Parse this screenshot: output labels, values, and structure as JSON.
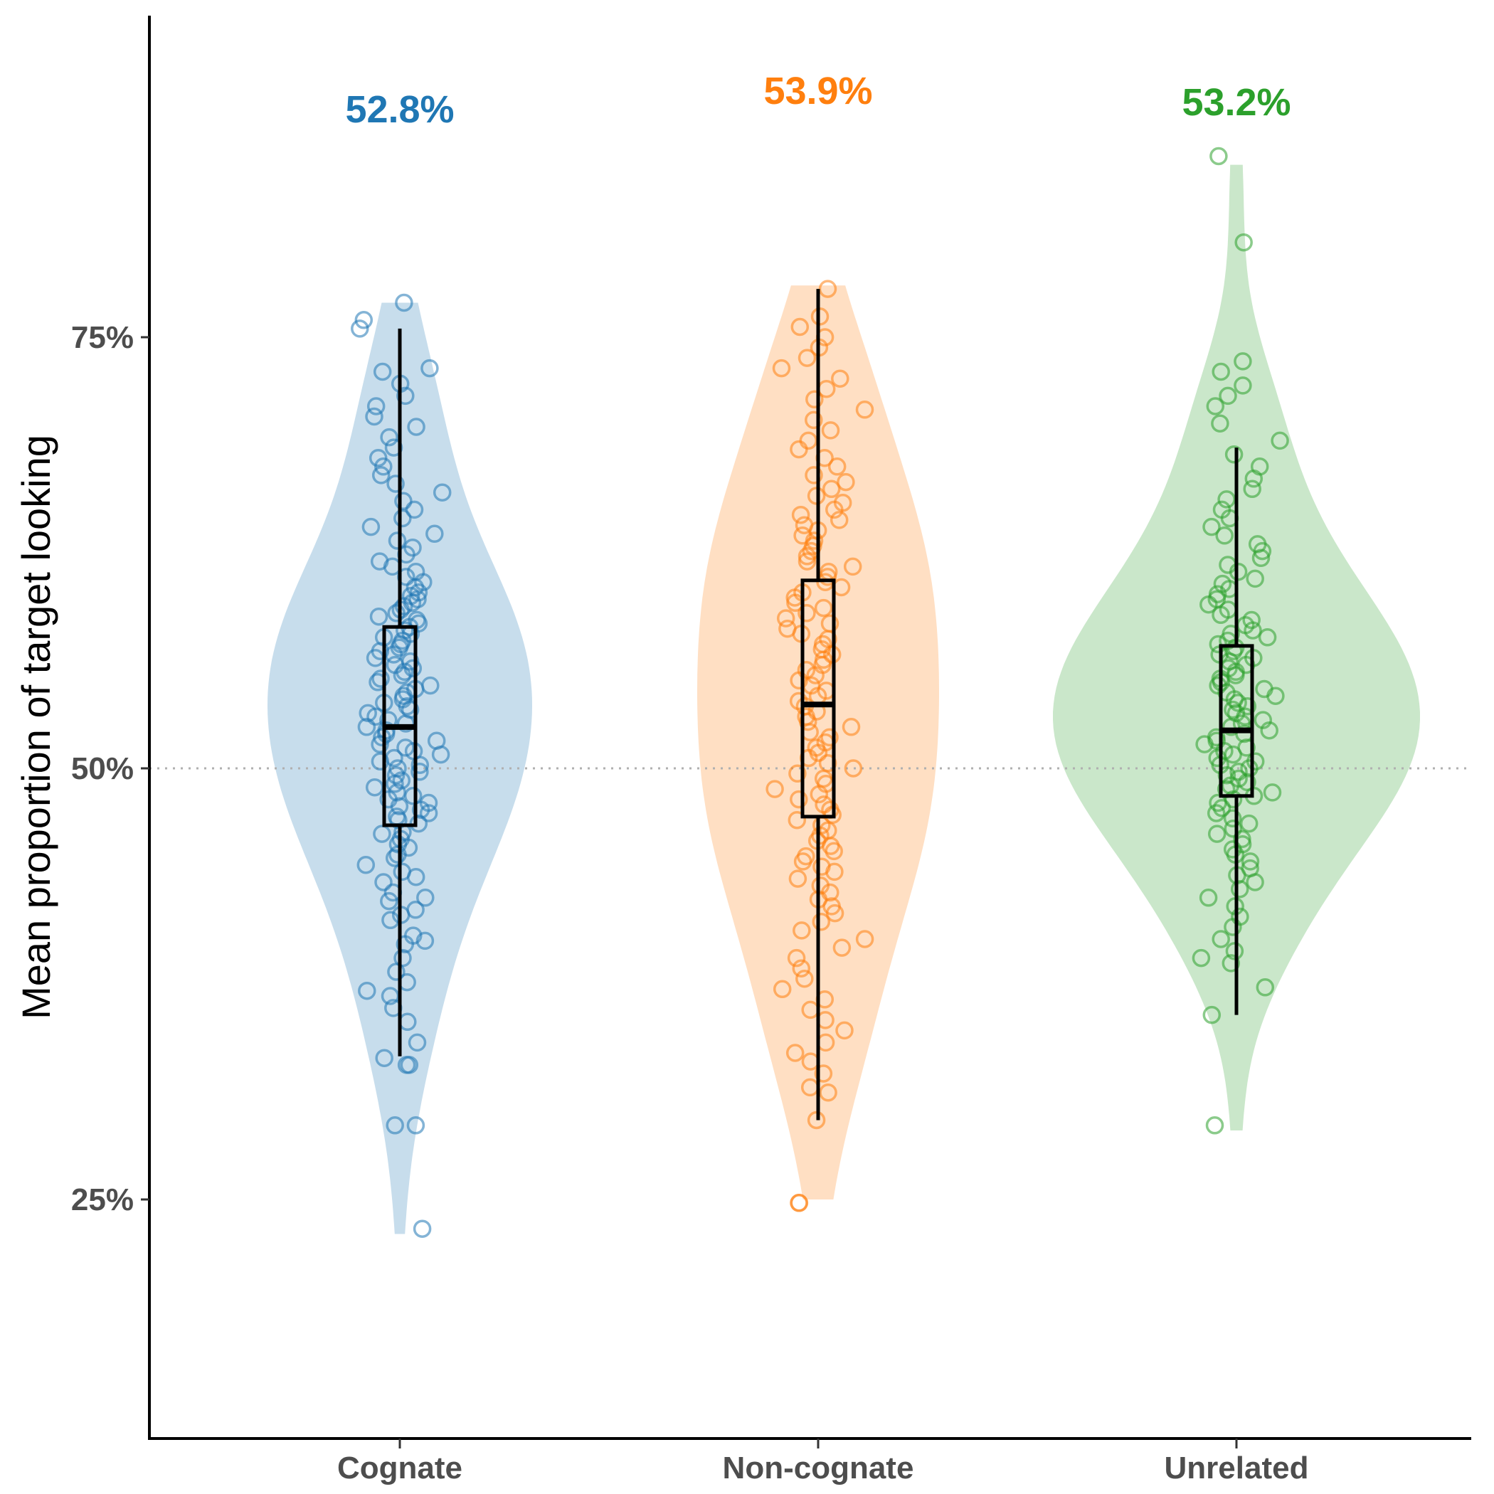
{
  "chart_data": {
    "type": "violin",
    "title": "",
    "xlabel": "",
    "ylabel": "Mean proportion of target looking",
    "y_unit": "percent",
    "ylim": [
      10,
      88
    ],
    "yticks": [
      25,
      50,
      75
    ],
    "ytick_labels": [
      "25%",
      "50%",
      "75%"
    ],
    "reference_line": 50,
    "grid": false,
    "legend": "none",
    "categories": [
      "Cognate",
      "Non-cognate",
      "Unrelated"
    ],
    "series": [
      {
        "name": "Cognate",
        "color": "#1f77b4",
        "mean_label": "52.8%",
        "median": 52.4,
        "q1": 46.7,
        "q3": 58.2,
        "whisker_low": 33.3,
        "whisker_high": 75.5,
        "violin_range": [
          23,
          77
        ],
        "points": [
          23.3,
          29.3,
          29.3,
          32.8,
          32.8,
          33.2,
          34.1,
          35.3,
          36.1,
          36.8,
          37.1,
          37.6,
          38.2,
          39.0,
          39.8,
          40.0,
          40.3,
          41.2,
          41.5,
          41.8,
          42.3,
          42.5,
          42.8,
          43.4,
          43.7,
          44.0,
          44.4,
          44.8,
          45.0,
          45.4,
          45.6,
          45.9,
          46.2,
          46.3,
          46.8,
          47.0,
          47.2,
          47.4,
          47.6,
          47.8,
          48.0,
          48.2,
          48.4,
          48.6,
          48.9,
          49.1,
          49.3,
          49.6,
          49.8,
          50.0,
          50.2,
          50.4,
          50.6,
          50.8,
          51.0,
          51.2,
          51.4,
          51.6,
          51.8,
          52.0,
          52.2,
          52.4,
          52.6,
          52.8,
          53.0,
          53.2,
          53.4,
          53.6,
          53.8,
          54.0,
          54.2,
          54.4,
          54.6,
          54.8,
          55.0,
          55.2,
          55.4,
          55.6,
          55.8,
          56.0,
          56.2,
          56.4,
          56.6,
          56.8,
          57.0,
          57.2,
          57.4,
          57.6,
          57.8,
          58.0,
          58.2,
          58.4,
          58.6,
          58.8,
          59.0,
          59.2,
          59.4,
          59.6,
          59.8,
          60.0,
          60.2,
          60.5,
          60.8,
          61.1,
          61.4,
          61.7,
          62.0,
          62.4,
          62.8,
          63.2,
          63.6,
          64.0,
          64.5,
          65.0,
          65.5,
          66.0,
          66.5,
          67.0,
          67.5,
          68.0,
          68.6,
          69.2,
          69.8,
          70.4,
          71.0,
          71.6,
          72.3,
          73.0,
          73.2,
          75.5,
          76.0,
          77.0
        ]
      },
      {
        "name": "Non-cognate",
        "color": "#ff7f0e",
        "mean_label": "53.9%",
        "median": 53.7,
        "q1": 47.2,
        "q3": 60.9,
        "whisker_low": 29.6,
        "whisker_high": 77.8,
        "violin_range": [
          25,
          78
        ],
        "points": [
          24.8,
          24.8,
          29.6,
          31.2,
          31.5,
          32.3,
          33.0,
          33.5,
          34.1,
          34.8,
          35.4,
          36.0,
          36.6,
          37.2,
          37.8,
          38.4,
          39.0,
          39.6,
          40.1,
          40.6,
          41.1,
          41.6,
          42.0,
          42.4,
          42.8,
          43.2,
          43.6,
          44.0,
          44.3,
          44.6,
          44.9,
          45.2,
          45.5,
          45.8,
          46.1,
          46.4,
          46.7,
          47.0,
          47.3,
          47.6,
          47.9,
          48.2,
          48.5,
          48.8,
          49.1,
          49.4,
          49.7,
          50.0,
          50.3,
          50.6,
          50.9,
          51.2,
          51.5,
          51.8,
          52.1,
          52.4,
          52.7,
          53.0,
          53.3,
          53.6,
          53.9,
          54.2,
          54.5,
          54.8,
          55.1,
          55.4,
          55.7,
          56.0,
          56.3,
          56.6,
          56.9,
          57.2,
          57.5,
          57.8,
          58.1,
          58.4,
          58.7,
          59.0,
          59.3,
          59.6,
          59.9,
          60.2,
          60.5,
          60.8,
          61.1,
          61.4,
          61.7,
          62.0,
          62.3,
          62.6,
          62.9,
          63.2,
          63.5,
          63.8,
          64.1,
          64.4,
          64.7,
          65.0,
          65.4,
          65.8,
          66.2,
          66.6,
          67.0,
          67.5,
          68.0,
          68.5,
          69.0,
          69.6,
          70.2,
          70.8,
          71.4,
          72.0,
          72.6,
          73.2,
          73.8,
          74.4,
          75.0,
          75.6,
          76.2,
          77.8
        ]
      },
      {
        "name": "Unrelated",
        "color": "#2ca02c",
        "mean_label": "53.2%",
        "median": 52.2,
        "q1": 48.4,
        "q3": 57.1,
        "whisker_low": 35.7,
        "whisker_high": 68.6,
        "violin_range": [
          29,
          85
        ],
        "points": [
          29.3,
          35.7,
          37.3,
          38.7,
          39.0,
          39.4,
          40.1,
          40.8,
          41.4,
          42.0,
          42.5,
          43.0,
          43.4,
          43.8,
          44.2,
          44.6,
          45.0,
          45.3,
          45.6,
          45.9,
          46.2,
          46.5,
          46.8,
          47.1,
          47.4,
          47.7,
          48.0,
          48.2,
          48.4,
          48.6,
          48.8,
          49.0,
          49.2,
          49.4,
          49.6,
          49.8,
          50.0,
          50.2,
          50.4,
          50.6,
          50.8,
          51.0,
          51.2,
          51.4,
          51.6,
          51.8,
          52.0,
          52.2,
          52.4,
          52.6,
          52.8,
          53.0,
          53.2,
          53.4,
          53.6,
          53.8,
          54.0,
          54.2,
          54.4,
          54.6,
          54.8,
          55.0,
          55.2,
          55.4,
          55.6,
          55.8,
          56.0,
          56.2,
          56.4,
          56.6,
          56.8,
          57.0,
          57.2,
          57.4,
          57.6,
          57.8,
          58.0,
          58.3,
          58.6,
          58.9,
          59.2,
          59.5,
          59.8,
          60.1,
          60.4,
          60.7,
          61.0,
          61.4,
          61.8,
          62.2,
          62.6,
          63.0,
          63.5,
          64.0,
          64.5,
          65.0,
          65.6,
          66.2,
          66.8,
          67.5,
          68.2,
          69.0,
          70.0,
          71.0,
          71.6,
          72.2,
          73.0,
          73.6,
          80.5,
          85.5
        ]
      }
    ]
  }
}
